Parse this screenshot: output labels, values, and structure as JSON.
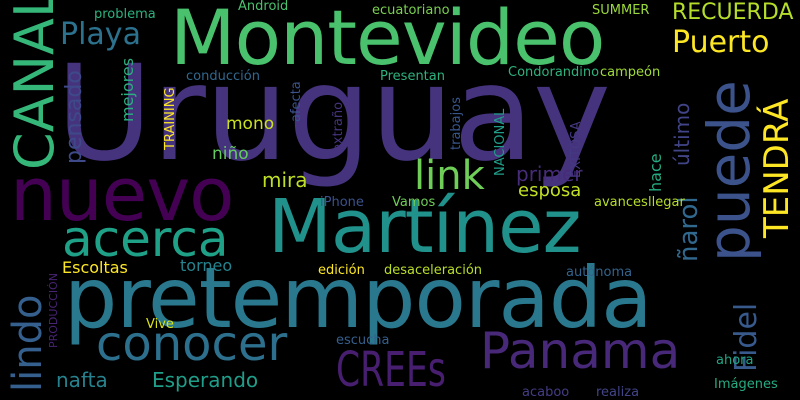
{
  "words": {
    "uruguay": {
      "text": "Uruguay",
      "color": "#46337e"
    },
    "montevideo": {
      "text": "Montevideo",
      "color": "#4ac16d"
    },
    "martinez": {
      "text": "Martínez",
      "color": "#21918c"
    },
    "pretemporada": {
      "text": "pretemporada",
      "color": "#2a788e"
    },
    "nuevo": {
      "text": "nuevo",
      "color": "#440154"
    },
    "puede": {
      "text": "puede",
      "color": "#3b528b"
    },
    "panama": {
      "text": "Panama",
      "color": "#482878"
    },
    "canal": {
      "text": "CANAL",
      "color": "#35b779"
    },
    "acerca": {
      "text": "acerca",
      "color": "#1fa188"
    },
    "conocer": {
      "text": "conocer",
      "color": "#2d708e"
    },
    "lindo": {
      "text": "lindo",
      "color": "#355f8d"
    },
    "link": {
      "text": "link",
      "color": "#6ece58"
    },
    "tendra": {
      "text": "TENDRÁ",
      "color": "#fde725"
    },
    "crees": {
      "text": "CREEs",
      "color": "#481f70"
    },
    "fidel": {
      "text": "Fidel",
      "color": "#38598c"
    },
    "playa": {
      "text": "Playa",
      "color": "#2c728e"
    },
    "puerto": {
      "text": "Puerto",
      "color": "#fde725"
    },
    "recuerda": {
      "text": "RECUERDA",
      "color": "#b5de2b"
    },
    "penarol": {
      "text": "ñarol",
      "color": "#31688e"
    },
    "nafta": {
      "text": "nafta",
      "color": "#26828e"
    },
    "esperando": {
      "text": "Esperando",
      "color": "#1f9e89"
    },
    "mira": {
      "text": "mira",
      "color": "#bddf26"
    },
    "primer": {
      "text": "primer",
      "color": "#472c7a"
    },
    "pensado": {
      "text": "pensado",
      "color": "#3e4989"
    },
    "ultimo": {
      "text": "último",
      "color": "#414487"
    },
    "mono": {
      "text": "mono",
      "color": "#cae11f"
    },
    "nino": {
      "text": "niño",
      "color": "#63cb5f"
    },
    "esposa": {
      "text": "esposa",
      "color": "#c2df23"
    },
    "escoltas": {
      "text": "Escoltas",
      "color": "#fde725"
    },
    "torneo": {
      "text": "torneo",
      "color": "#25838e"
    },
    "mejores": {
      "text": "mejores",
      "color": "#2ab07f"
    },
    "hace": {
      "text": "hace",
      "color": "#25ab82"
    },
    "problema": {
      "text": "problema",
      "color": "#2db27d"
    },
    "android": {
      "text": "Android",
      "color": "#4ac16d"
    },
    "ecuatoriano": {
      "text": "ecuatoriano",
      "color": "#7ad151"
    },
    "summer": {
      "text": "SUMMER",
      "color": "#9bd93c"
    },
    "conduccion": {
      "text": "conducción",
      "color": "#31688e"
    },
    "presentan": {
      "text": "Presentan",
      "color": "#2db27d"
    },
    "condorandino": {
      "text": "Condorandino",
      "color": "#2db27d"
    },
    "campeon": {
      "text": "campeón",
      "color": "#a0da39"
    },
    "training": {
      "text": "TRAINING",
      "color": "#fde725"
    },
    "afecta": {
      "text": "afecta",
      "color": "#3b528b"
    },
    "extrano": {
      "text": "extraño",
      "color": "#46337e"
    },
    "trabajos": {
      "text": "trabajos",
      "color": "#39568c"
    },
    "nacional": {
      "text": "NACIONAL",
      "color": "#1f9e89"
    },
    "exitosa": {
      "text": "EXITOSA",
      "color": "#443983"
    },
    "iphone": {
      "text": "iPhone",
      "color": "#3b528b"
    },
    "vamos": {
      "text": "Vamos",
      "color": "#6ece58"
    },
    "avances": {
      "text": "avances",
      "color": "#b5de2b"
    },
    "llegar": {
      "text": "llegar",
      "color": "#b5de2b"
    },
    "produccion": {
      "text": "PRODUCCIÓN",
      "color": "#482475"
    },
    "edicion": {
      "text": "edición",
      "color": "#fde725"
    },
    "desaceleracion": {
      "text": "desaceleración",
      "color": "#b8de29"
    },
    "autonoma": {
      "text": "autónoma",
      "color": "#33638d"
    },
    "vive": {
      "text": "Vive",
      "color": "#d8e219"
    },
    "escucha": {
      "text": "escucha",
      "color": "#355f8d"
    },
    "ahora": {
      "text": "ahora",
      "color": "#21a685"
    },
    "acaboo": {
      "text": "acaboo",
      "color": "#433d84"
    },
    "realiza": {
      "text": "realiza",
      "color": "#414487"
    },
    "imagenes": {
      "text": "Imágenes",
      "color": "#25ab82"
    }
  }
}
